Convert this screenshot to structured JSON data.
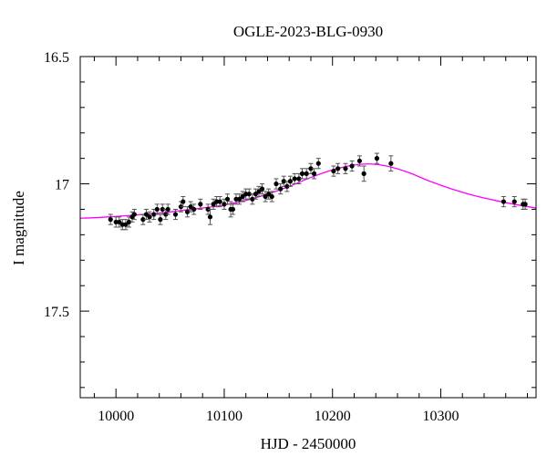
{
  "chart_data": {
    "type": "scatter",
    "title": "OGLE-2023-BLG-0930",
    "xlabel": "HJD - 2450000",
    "ylabel": "I magnitude",
    "xlim": [
      9967,
      10388
    ],
    "ylim": [
      17.84,
      16.5
    ],
    "y_inverted": true,
    "grid": false,
    "x_ticks": [
      {
        "value": 10000,
        "label": "10000"
      },
      {
        "value": 10100,
        "label": "10100"
      },
      {
        "value": 10200,
        "label": "10200"
      },
      {
        "value": 10300,
        "label": "10300"
      }
    ],
    "y_ticks": [
      {
        "value": 16.5,
        "label": "16.5"
      },
      {
        "value": 17.0,
        "label": "17"
      },
      {
        "value": 17.5,
        "label": "17.5"
      }
    ],
    "points_color": "#000000",
    "model_color": "#ff00ff",
    "observations": {
      "x": [
        9995,
        10000,
        10003,
        10006,
        10009,
        10012,
        10015,
        10017,
        10025,
        10028,
        10031,
        10035,
        10038,
        10041,
        10043,
        10046,
        10048,
        10055,
        10060,
        10062,
        10066,
        10069,
        10072,
        10078,
        10085,
        10087,
        10090,
        10093,
        10096,
        10100,
        10103,
        10106,
        10108,
        10111,
        10114,
        10117,
        10120,
        10123,
        10126,
        10129,
        10132,
        10135,
        10138,
        10141,
        10144,
        10148,
        10152,
        10155,
        10158,
        10161,
        10165,
        10169,
        10172,
        10176,
        10180,
        10183,
        10187,
        10201,
        10205,
        10212,
        10218,
        10225,
        10229,
        10241,
        10254,
        10358,
        10368,
        10376,
        10378
      ],
      "y": [
        17.14,
        17.15,
        17.15,
        17.16,
        17.16,
        17.15,
        17.13,
        17.12,
        17.14,
        17.12,
        17.13,
        17.12,
        17.1,
        17.14,
        17.1,
        17.12,
        17.1,
        17.12,
        17.09,
        17.07,
        17.11,
        17.09,
        17.1,
        17.08,
        17.1,
        17.13,
        17.08,
        17.07,
        17.07,
        17.08,
        17.06,
        17.1,
        17.1,
        17.06,
        17.06,
        17.05,
        17.04,
        17.04,
        17.06,
        17.04,
        17.03,
        17.02,
        17.05,
        17.04,
        17.05,
        17.0,
        17.02,
        16.99,
        17.01,
        16.99,
        16.98,
        16.98,
        16.96,
        16.96,
        16.94,
        16.96,
        16.92,
        16.95,
        16.94,
        16.94,
        16.93,
        16.91,
        16.96,
        16.9,
        16.92,
        17.07,
        17.07,
        17.08,
        17.08
      ],
      "err": [
        0.02,
        0.02,
        0.02,
        0.02,
        0.02,
        0.02,
        0.02,
        0.02,
        0.02,
        0.02,
        0.02,
        0.02,
        0.02,
        0.02,
        0.02,
        0.02,
        0.02,
        0.02,
        0.02,
        0.02,
        0.02,
        0.02,
        0.02,
        0.02,
        0.02,
        0.03,
        0.02,
        0.02,
        0.02,
        0.02,
        0.02,
        0.03,
        0.02,
        0.02,
        0.02,
        0.02,
        0.02,
        0.02,
        0.02,
        0.02,
        0.02,
        0.02,
        0.02,
        0.02,
        0.02,
        0.02,
        0.02,
        0.02,
        0.02,
        0.02,
        0.02,
        0.02,
        0.02,
        0.02,
        0.02,
        0.02,
        0.02,
        0.02,
        0.02,
        0.02,
        0.02,
        0.02,
        0.03,
        0.02,
        0.03,
        0.02,
        0.02,
        0.02,
        0.02
      ]
    },
    "model_curve": {
      "x": [
        9967,
        9980,
        10000,
        10020,
        10040,
        10060,
        10080,
        10100,
        10120,
        10140,
        10160,
        10180,
        10200,
        10220,
        10235,
        10250,
        10270,
        10290,
        10310,
        10330,
        10350,
        10370,
        10388
      ],
      "y": [
        17.135,
        17.133,
        17.128,
        17.122,
        17.115,
        17.105,
        17.095,
        17.083,
        17.065,
        17.04,
        17.01,
        16.975,
        16.945,
        16.926,
        16.922,
        16.93,
        16.955,
        16.99,
        17.02,
        17.045,
        17.065,
        17.082,
        17.095
      ]
    }
  }
}
